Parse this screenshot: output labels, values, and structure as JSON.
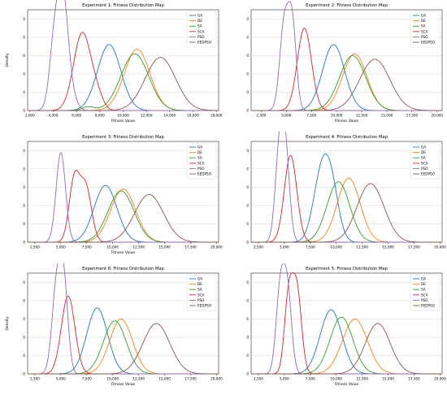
{
  "legend_names": [
    "GA",
    "DE",
    "SA",
    "SCA",
    "PSO",
    "EEDPSO"
  ],
  "colors": {
    "GA": "#1f77b4",
    "DE": "#ff7f0e",
    "SA": "#2ca02c",
    "SCA": "#d62728",
    "PSO": "#9467bd",
    "EEDPSO": "#8c564b"
  },
  "chart_data": [
    {
      "type": "line",
      "title": "Experiment 1: Fitness Distribution Map",
      "xlabel": "Fitness Value",
      "ylabel": "Density",
      "xlim": [
        1800,
        18200
      ],
      "xticks": [
        2000,
        4000,
        6000,
        8000,
        10000,
        12000,
        14000,
        16000,
        18000
      ],
      "xtick_labels": [
        "2,000",
        "4,000",
        "6,000",
        "8,000",
        "10,000",
        "12,000",
        "14,000",
        "16,000",
        "18,000"
      ],
      "ylim": [
        0,
        1.1
      ],
      "yticks": [
        0,
        0.2,
        0.4,
        0.6,
        0.8,
        1.0
      ],
      "ytick_labels": [
        "0",
        "0",
        "0",
        "0",
        "0",
        "0"
      ],
      "legend": "top-right",
      "grid": "horizontal",
      "series": [
        {
          "name": "GA",
          "peaks": [
            [
              8800,
              0.72,
              1000
            ]
          ]
        },
        {
          "name": "DE",
          "peaks": [
            [
              11200,
              0.67,
              1100
            ]
          ]
        },
        {
          "name": "SA",
          "peaks": [
            [
              11000,
              0.62,
              1200
            ],
            [
              7000,
              0.04,
              500
            ]
          ]
        },
        {
          "name": "SCA",
          "peaks": [
            [
              6500,
              0.85,
              750
            ],
            [
              7800,
              0.12,
              500
            ]
          ]
        },
        {
          "name": "PSO",
          "peaks": [
            [
              4200,
              0.92,
              450
            ],
            [
              4900,
              0.95,
              400
            ],
            [
              5500,
              0.2,
              450
            ]
          ]
        },
        {
          "name": "EEDPSO",
          "peaks": [
            [
              13200,
              0.58,
              1300
            ]
          ]
        }
      ]
    },
    {
      "type": "line",
      "title": "Experiment 2: Fitness Distribution Map",
      "xlabel": "Fitness Value",
      "ylabel": "",
      "xlim": [
        1500,
        20500
      ],
      "xticks": [
        2500,
        5000,
        7500,
        10000,
        12500,
        15000,
        17500,
        20000
      ],
      "xtick_labels": [
        "2,500",
        "5,000",
        "7,500",
        "10,000",
        "12,500",
        "15,000",
        "17,500",
        "20,000"
      ],
      "ylim": [
        0,
        1.1
      ],
      "yticks": [
        0,
        0.2,
        0.4,
        0.6,
        0.8,
        1.0
      ],
      "ytick_labels": [
        "0",
        "0",
        "0",
        "0",
        "0",
        "0"
      ],
      "legend": "top-right",
      "grid": "horizontal",
      "series": [
        {
          "name": "GA",
          "peaks": [
            [
              9700,
              0.72,
              1100
            ]
          ]
        },
        {
          "name": "DE",
          "peaks": [
            [
              11800,
              0.62,
              1200
            ]
          ]
        },
        {
          "name": "SA",
          "peaks": [
            [
              11600,
              0.6,
              1300
            ]
          ]
        },
        {
          "name": "SCA",
          "peaks": [
            [
              6800,
              0.9,
              700
            ]
          ]
        },
        {
          "name": "PSO",
          "peaks": [
            [
              4800,
              0.95,
              450
            ],
            [
              5600,
              0.9,
              400
            ]
          ]
        },
        {
          "name": "EEDPSO",
          "peaks": [
            [
              13800,
              0.56,
              1500
            ]
          ]
        }
      ]
    },
    {
      "type": "line",
      "title": "Experiment 3: Fitness Distribution Map",
      "xlabel": "Fitness Value",
      "ylabel": "",
      "xlim": [
        1800,
        20200
      ],
      "xticks": [
        2500,
        5000,
        7500,
        10000,
        12500,
        15000,
        17500,
        20000
      ],
      "xtick_labels": [
        "2,500",
        "5,000",
        "7,500",
        "10,000",
        "12,500",
        "15,000",
        "17,500",
        "20,000"
      ],
      "ylim": [
        0,
        1.1
      ],
      "yticks": [
        0,
        0.2,
        0.4,
        0.6,
        0.8,
        1.0
      ],
      "ytick_labels": [
        "0",
        "0",
        "0",
        "0",
        "0",
        "0"
      ],
      "legend": "top-right",
      "grid": "horizontal",
      "series": [
        {
          "name": "GA",
          "peaks": [
            [
              9300,
              0.62,
              1100
            ]
          ]
        },
        {
          "name": "DE",
          "peaks": [
            [
              11000,
              0.58,
              1200
            ]
          ]
        },
        {
          "name": "SA",
          "peaks": [
            [
              10800,
              0.56,
              1250
            ]
          ]
        },
        {
          "name": "SCA",
          "peaks": [
            [
              6300,
              0.68,
              500
            ],
            [
              7400,
              0.6,
              550
            ]
          ]
        },
        {
          "name": "PSO",
          "peaks": [
            [
              5000,
              0.98,
              450
            ]
          ]
        },
        {
          "name": "EEDPSO",
          "peaks": [
            [
              13500,
              0.52,
              1400
            ]
          ]
        }
      ]
    },
    {
      "type": "line",
      "title": "Experiment 4: Fitness Distribution Map",
      "xlabel": "",
      "ylabel": "",
      "xlim": [
        1800,
        20200
      ],
      "xticks": [
        2500,
        5000,
        7500,
        10000,
        12500,
        15000,
        17500,
        20000
      ],
      "xtick_labels": [
        "2,500",
        "5,000",
        "7,500",
        "10,000",
        "12,500",
        "15,000",
        "17,500",
        "20,000"
      ],
      "ylim": [
        0,
        1.1
      ],
      "yticks": [
        0,
        0.2,
        0.4,
        0.6,
        0.8,
        1.0
      ],
      "ytick_labels": [
        "0",
        "0",
        "0",
        "0",
        "0",
        "0"
      ],
      "legend": "top-right",
      "grid": "horizontal",
      "series": [
        {
          "name": "GA",
          "peaks": [
            [
              8600,
              0.74,
              800
            ],
            [
              9600,
              0.45,
              700
            ]
          ]
        },
        {
          "name": "DE",
          "peaks": [
            [
              11200,
              0.7,
              1100
            ]
          ]
        },
        {
          "name": "SA",
          "peaks": [
            [
              10200,
              0.66,
              1100
            ]
          ]
        },
        {
          "name": "SCA",
          "peaks": [
            [
              5600,
              0.95,
              600
            ]
          ]
        },
        {
          "name": "PSO",
          "peaks": [
            [
              4500,
              0.9,
              400
            ],
            [
              5100,
              0.95,
              400
            ]
          ]
        },
        {
          "name": "EEDPSO",
          "peaks": [
            [
              13300,
              0.64,
              1300
            ]
          ]
        }
      ]
    },
    {
      "type": "line",
      "title": "Experiment 6: Fitness Distribution Map",
      "xlabel": "Fitness Value",
      "ylabel": "Density",
      "xlim": [
        1800,
        20200
      ],
      "xticks": [
        2500,
        5000,
        7500,
        10000,
        12500,
        15000,
        17500,
        20000
      ],
      "xtick_labels": [
        "2,500",
        "5,000",
        "7,500",
        "10,000",
        "12,500",
        "15,000",
        "17,500",
        "20,000"
      ],
      "ylim": [
        0,
        1.1
      ],
      "yticks": [
        0,
        0.2,
        0.4,
        0.6,
        0.8,
        1.0
      ],
      "ytick_labels": [
        "0",
        "0",
        "0",
        "0",
        "0",
        "0"
      ],
      "legend": "top-right",
      "grid": "horizontal",
      "series": [
        {
          "name": "GA",
          "peaks": [
            [
              8500,
              0.72,
              1000
            ]
          ]
        },
        {
          "name": "DE",
          "peaks": [
            [
              10800,
              0.6,
              1100
            ]
          ]
        },
        {
          "name": "SA",
          "peaks": [
            [
              10200,
              0.58,
              1100
            ]
          ]
        },
        {
          "name": "SCA",
          "peaks": [
            [
              5700,
              0.85,
              650
            ]
          ]
        },
        {
          "name": "PSO",
          "peaks": [
            [
              4600,
              0.95,
              450
            ],
            [
              5300,
              0.9,
              400
            ]
          ]
        },
        {
          "name": "EEDPSO",
          "peaks": [
            [
              14200,
              0.55,
              1300
            ]
          ]
        }
      ]
    },
    {
      "type": "line",
      "title": "Experiment 5: Fitness Distribution Map",
      "xlabel": "Fitness Value",
      "ylabel": "",
      "xlim": [
        1800,
        20200
      ],
      "xticks": [
        2500,
        5000,
        7500,
        10000,
        12500,
        15000,
        17500,
        20000
      ],
      "xtick_labels": [
        "2,500",
        "5,000",
        "7,500",
        "10,000",
        "12,500",
        "15,000",
        "17,500",
        "20,000"
      ],
      "ylim": [
        0,
        1.1
      ],
      "yticks": [
        0,
        0.2,
        0.4,
        0.6,
        0.8,
        1.0
      ],
      "ytick_labels": [
        "0",
        "0",
        "0",
        "0",
        "0",
        "0"
      ],
      "legend": "top-right",
      "grid": "horizontal",
      "series": [
        {
          "name": "GA",
          "peaks": [
            [
              9500,
              0.7,
              1050
            ]
          ]
        },
        {
          "name": "DE",
          "peaks": [
            [
              11800,
              0.6,
              1200
            ]
          ]
        },
        {
          "name": "SA",
          "peaks": [
            [
              10500,
              0.62,
              1100
            ]
          ]
        },
        {
          "name": "SCA",
          "peaks": [
            [
              6200,
              0.92,
              450
            ],
            [
              5400,
              0.8,
              400
            ]
          ]
        },
        {
          "name": "PSO",
          "peaks": [
            [
              4600,
              0.9,
              400
            ],
            [
              5300,
              0.88,
              400
            ]
          ]
        },
        {
          "name": "EEDPSO",
          "peaks": [
            [
              14000,
              0.55,
              1200
            ]
          ]
        }
      ]
    }
  ]
}
